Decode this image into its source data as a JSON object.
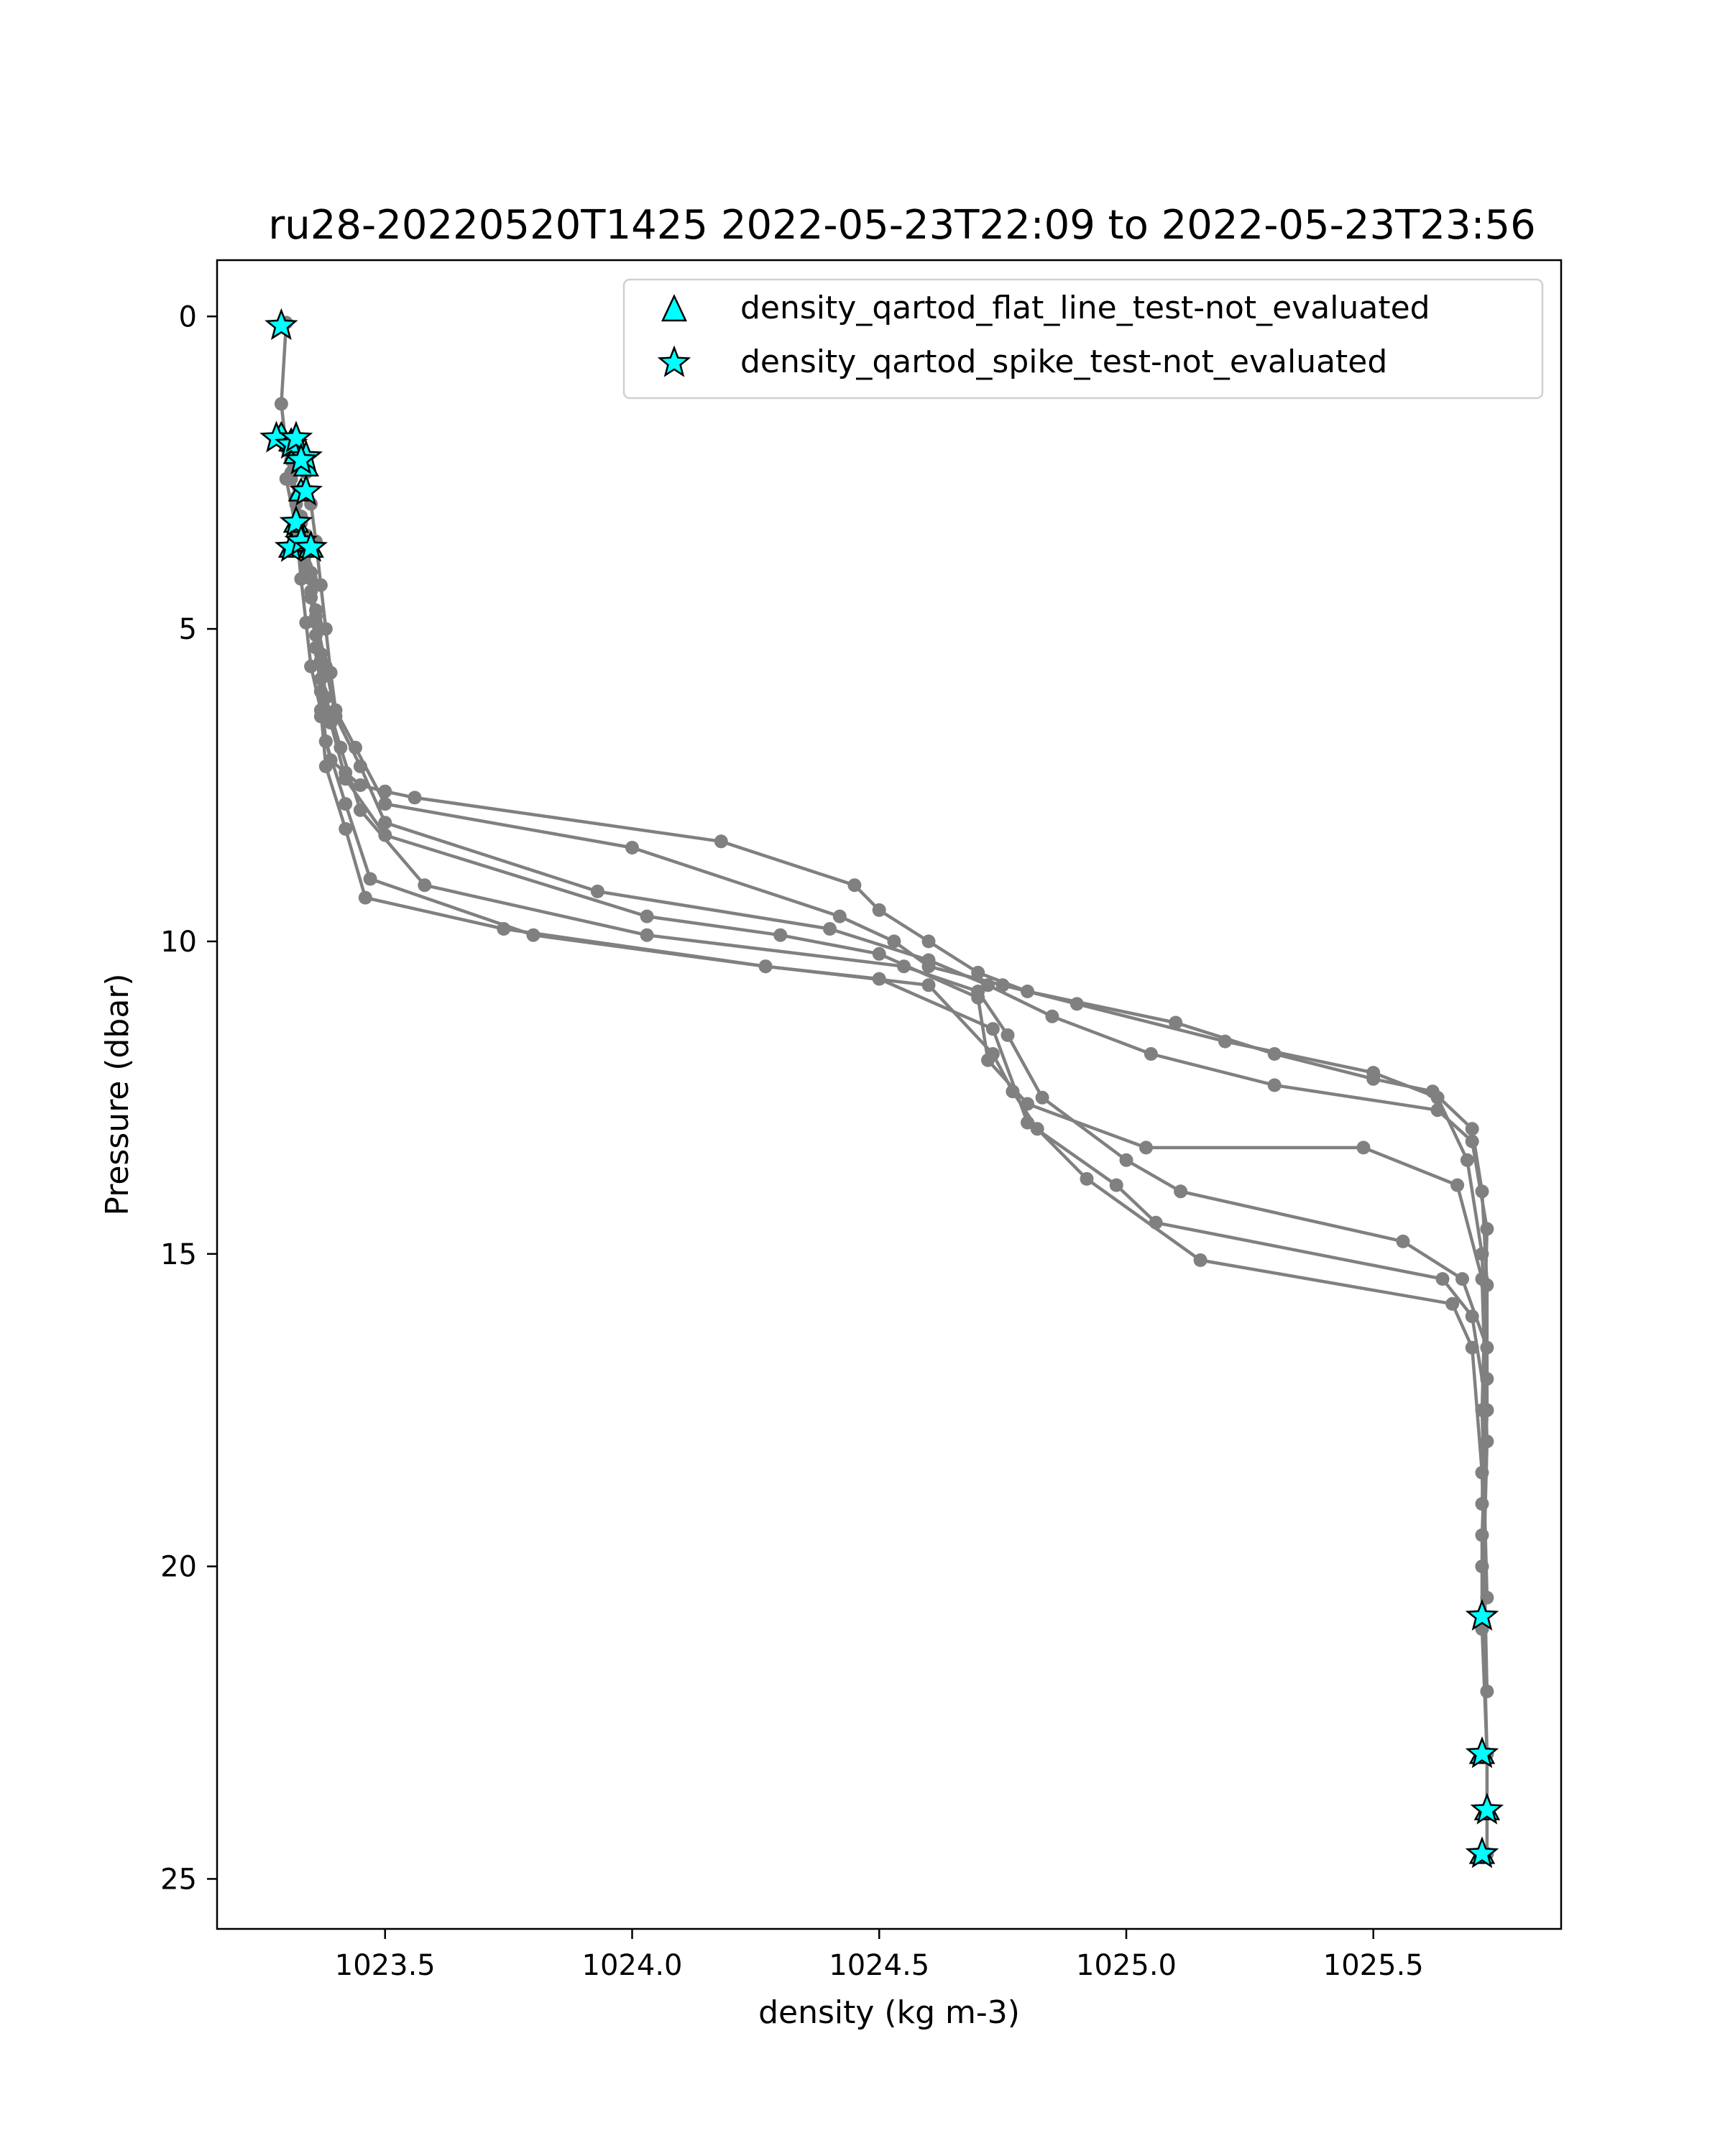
{
  "chart_data": {
    "type": "scatter",
    "title": "ru28-20220520T1425 2022-05-23T22:09 to 2022-05-23T23:56",
    "xlabel": "density (kg m-3)",
    "ylabel": "Pressure (dbar)",
    "xlim": [
      1023.16,
      1025.88
    ],
    "ylim": [
      25.8,
      -0.9
    ],
    "y_inverted": true,
    "grid": false,
    "xticks": [
      1023.5,
      1024.0,
      1024.5,
      1025.0,
      1025.5
    ],
    "xtick_labels": [
      "1023.5",
      "1024.0",
      "1024.5",
      "1025.0",
      "1025.5"
    ],
    "yticks": [
      0,
      5,
      10,
      15,
      20,
      25
    ],
    "ytick_labels": [
      "0",
      "5",
      "10",
      "15",
      "20",
      "25"
    ],
    "legend": {
      "placement": "upper-right",
      "entries": [
        {
          "label": "density_qartod_flat_line_test-not_evaluated",
          "marker": "triangle",
          "color": "#00ffff"
        },
        {
          "label": "density_qartod_spike_test-not_evaluated",
          "marker": "star",
          "color": "#00ffff"
        }
      ]
    },
    "profile_color": "#808080",
    "marker_edge_color": "#000000",
    "profiles": [
      {
        "x": [
          1023.3,
          1023.29,
          1023.3,
          1023.31,
          1023.33,
          1023.34,
          1023.35,
          1023.36,
          1023.37,
          1023.37,
          1023.37,
          1023.38,
          1023.39,
          1023.42,
          1023.45,
          1023.5,
          1023.56,
          1024.18,
          1024.45,
          1024.5,
          1024.6,
          1024.7,
          1024.8,
          1025.1,
          1025.3,
          1025.5,
          1025.62,
          1025.7,
          1025.72,
          1025.73,
          1025.73,
          1025.72,
          1025.72,
          1025.73,
          1025.73
        ],
        "y": [
          0.1,
          1.4,
          2.1,
          2.6,
          3.2,
          3.7,
          4.2,
          4.9,
          5.5,
          6.0,
          6.4,
          6.8,
          7.1,
          7.3,
          7.5,
          7.6,
          7.7,
          8.4,
          9.1,
          9.5,
          10.0,
          10.5,
          10.8,
          11.3,
          11.8,
          12.2,
          12.4,
          13.0,
          14.0,
          15.5,
          17.5,
          19.5,
          21.0,
          23.0,
          24.6
        ]
      },
      {
        "x": [
          1023.32,
          1023.34,
          1023.35,
          1023.36,
          1023.37,
          1023.38,
          1023.39,
          1023.4,
          1023.44,
          1023.5,
          1024.0,
          1024.42,
          1024.53,
          1024.6,
          1024.75,
          1024.9,
          1025.2,
          1025.5,
          1025.63,
          1025.69,
          1025.72,
          1025.73,
          1025.72,
          1025.73
        ],
        "y": [
          2.0,
          2.5,
          3.0,
          3.6,
          4.3,
          5.0,
          5.7,
          6.3,
          6.9,
          7.8,
          8.5,
          9.6,
          10.0,
          10.4,
          10.7,
          11.0,
          11.6,
          12.1,
          12.5,
          13.5,
          15.0,
          17.0,
          20.0,
          23.0
        ]
      },
      {
        "x": [
          1023.31,
          1023.32,
          1023.34,
          1023.35,
          1023.36,
          1023.38,
          1023.4,
          1023.45,
          1023.5,
          1023.93,
          1024.4,
          1024.6,
          1024.72,
          1024.85,
          1025.05,
          1025.3,
          1025.63,
          1025.7,
          1025.73,
          1025.72,
          1025.73
        ],
        "y": [
          2.2,
          2.9,
          3.5,
          4.1,
          4.8,
          5.6,
          6.4,
          7.2,
          8.1,
          9.2,
          9.8,
          10.3,
          10.7,
          11.2,
          11.8,
          12.3,
          12.7,
          13.2,
          14.6,
          17.5,
          20.5
        ]
      },
      {
        "x": [
          1023.31,
          1023.32,
          1023.33,
          1023.35,
          1023.36,
          1023.37,
          1023.39,
          1023.42,
          1023.5,
          1024.03,
          1024.3,
          1024.5,
          1024.7,
          1024.72,
          1024.8,
          1025.04,
          1025.48,
          1025.67,
          1025.72,
          1025.73,
          1025.72
        ],
        "y": [
          2.3,
          3.0,
          3.7,
          4.4,
          5.1,
          5.8,
          6.5,
          7.4,
          8.3,
          9.6,
          9.9,
          10.2,
          10.9,
          11.9,
          12.6,
          13.3,
          13.3,
          13.9,
          15.4,
          18.0,
          21.0
        ]
      },
      {
        "x": [
          1023.31,
          1023.33,
          1023.34,
          1023.36,
          1023.37,
          1023.38,
          1023.41,
          1023.45,
          1023.58,
          1024.03,
          1024.55,
          1024.7,
          1024.76,
          1024.83,
          1025.0,
          1025.11,
          1025.56,
          1025.68,
          1025.73,
          1025.72
        ],
        "y": [
          2.5,
          3.3,
          4.0,
          4.7,
          5.4,
          6.1,
          6.9,
          7.9,
          9.1,
          9.9,
          10.4,
          10.8,
          11.5,
          12.5,
          13.5,
          14.0,
          14.8,
          15.4,
          16.5,
          19.0
        ]
      },
      {
        "x": [
          1023.3,
          1023.32,
          1023.33,
          1023.34,
          1023.35,
          1023.37,
          1023.38,
          1023.42,
          1023.46,
          1023.74,
          1024.27,
          1024.5,
          1024.73,
          1024.8,
          1024.98,
          1025.06,
          1025.64,
          1025.7,
          1025.73,
          1025.72
        ],
        "y": [
          2.6,
          3.4,
          4.2,
          4.9,
          5.6,
          6.3,
          7.2,
          8.2,
          9.3,
          9.8,
          10.4,
          10.6,
          11.4,
          12.9,
          13.9,
          14.5,
          15.4,
          16.0,
          17.5,
          20.0
        ]
      },
      {
        "x": [
          1023.32,
          1023.34,
          1023.35,
          1023.36,
          1023.37,
          1023.38,
          1023.42,
          1023.47,
          1023.8,
          1024.27,
          1024.6,
          1024.73,
          1024.77,
          1024.82,
          1024.92,
          1025.15,
          1025.66,
          1025.7,
          1025.72,
          1025.73
        ],
        "y": [
          3.0,
          3.8,
          4.5,
          5.3,
          6.0,
          6.8,
          7.8,
          9.0,
          9.9,
          10.4,
          10.7,
          11.8,
          12.4,
          13.0,
          13.8,
          15.1,
          15.8,
          16.5,
          18.5,
          22.0
        ]
      }
    ],
    "flat_line_not_evaluated": {
      "x": [
        1023.29,
        1023.31,
        1023.32,
        1023.34,
        1023.33,
        1023.32,
        1023.31,
        1023.33,
        1023.35,
        1025.72,
        1025.73,
        1025.72
      ],
      "y": [
        1.9,
        2.0,
        2.2,
        2.4,
        2.8,
        3.3,
        3.7,
        3.6,
        3.7,
        23.0,
        23.9,
        24.6
      ]
    },
    "spike_not_evaluated": {
      "x": [
        1023.29,
        1023.28,
        1023.31,
        1023.32,
        1023.34,
        1023.33,
        1023.34,
        1023.32,
        1023.31,
        1023.33,
        1023.35,
        1025.72,
        1025.72,
        1025.73,
        1025.72
      ],
      "y": [
        0.15,
        1.95,
        2.05,
        1.95,
        2.25,
        2.3,
        2.8,
        3.3,
        3.7,
        3.6,
        3.7,
        20.8,
        23.0,
        23.9,
        24.6
      ]
    }
  }
}
